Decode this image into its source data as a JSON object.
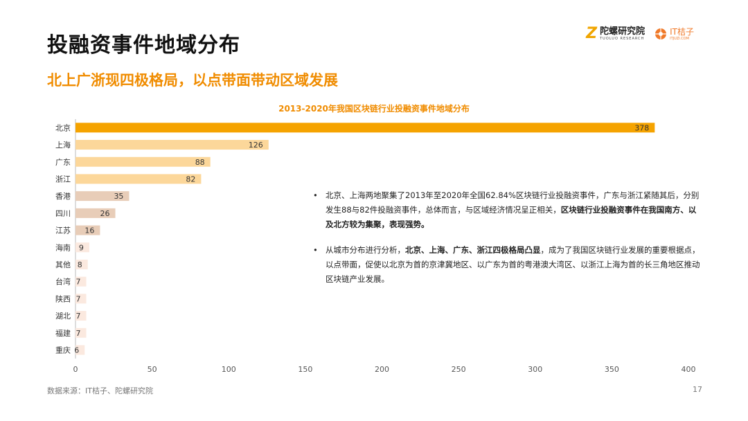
{
  "header": {
    "title": "投融资事件地域分布",
    "subtitle": "北上广浙现四极格局，以点带面带动区域发展"
  },
  "brand": {
    "tuoluo_name": "陀螺研究院",
    "tuoluo_en": "TUOLUO RESEARCH",
    "itjuzi_name": "IT桔子",
    "itjuzi_en": "ITJUZI.COM"
  },
  "chart_data": {
    "type": "bar",
    "orientation": "horizontal",
    "title": "2013-2020年我国区块链行业投融资事件地域分布",
    "categories": [
      "北京",
      "上海",
      "广东",
      "浙江",
      "香港",
      "四川",
      "江苏",
      "海南",
      "其他",
      "台湾",
      "陕西",
      "湖北",
      "福建",
      "重庆"
    ],
    "values": [
      378,
      126,
      88,
      82,
      35,
      26,
      16,
      9,
      8,
      7,
      7,
      7,
      7,
      6
    ],
    "colors": [
      "#f5a300",
      "#fcd79a",
      "#fcd79a",
      "#fcd79a",
      "#e8cdb8",
      "#e8cdb8",
      "#e8cdb8",
      "#fbe9df",
      "#fbe9df",
      "#fbe9df",
      "#fbe9df",
      "#fbe9df",
      "#fbe9df",
      "#fbe9df"
    ],
    "xlim": [
      0,
      400
    ],
    "xticks": [
      0,
      50,
      100,
      150,
      200,
      250,
      300,
      350,
      400
    ],
    "grid": false,
    "legend": "none"
  },
  "analysis": {
    "bullet1_a": "北京、上海两地聚集了2013年至2020年全国62.84%区块链行业投融资事件，广东与浙江紧随其后，分别发生88与82件投融资事件，总体而言，与区域经济情况呈正相关，",
    "bullet1_b": "区块链行业投融资事件在我国南方、以及北方较为集聚，表现强势。",
    "bullet2_a": "从城市分布进行分析，",
    "bullet2_b": "北京、上海、广东、浙江四极格局凸显",
    "bullet2_c": "，成为了我国区块链行业发展的重要根据点，以点带面，促使以北京为首的京津冀地区、以广东为首的粤港澳大湾区、以浙江上海为首的长三角地区推动区块链产业发展。"
  },
  "footer": {
    "source": "数据来源：IT桔子、陀螺研究院",
    "page": "17"
  }
}
